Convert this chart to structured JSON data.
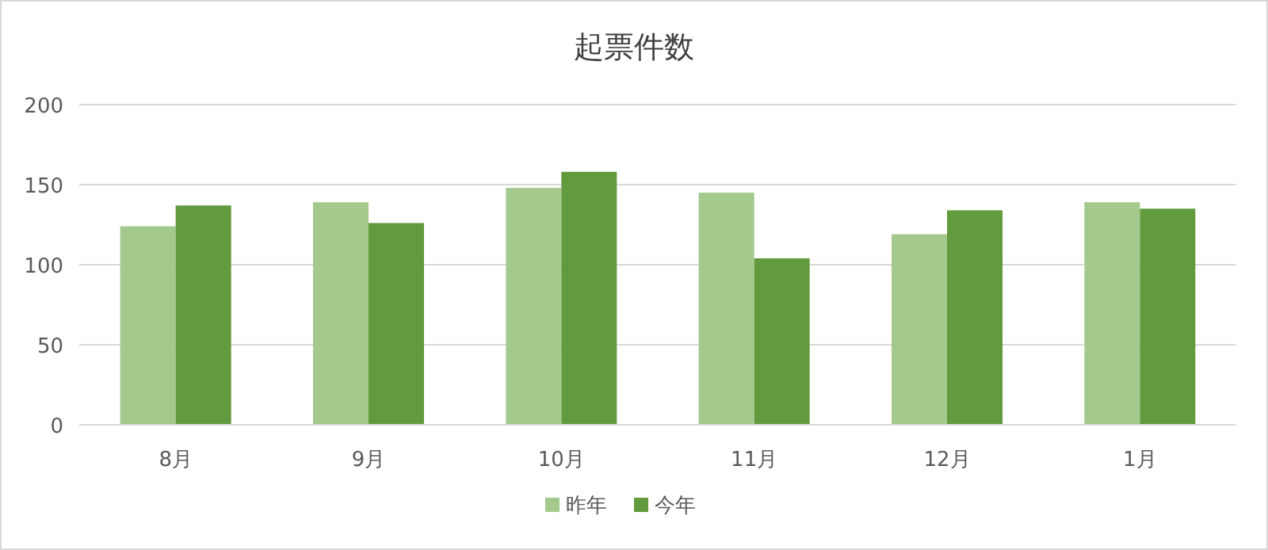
{
  "chart_data": {
    "type": "bar",
    "title": "起票件数",
    "categories": [
      "8月",
      "9月",
      "10月",
      "11月",
      "12月",
      "1月"
    ],
    "series": [
      {
        "name": "昨年",
        "color": "#a3c98c",
        "values": [
          124,
          139,
          148,
          145,
          119,
          139
        ]
      },
      {
        "name": "今年",
        "color": "#629a3e",
        "values": [
          137,
          126,
          158,
          104,
          134,
          135
        ]
      }
    ],
    "ylim": [
      0,
      200
    ],
    "yticks": [
      0,
      50,
      100,
      150,
      200
    ],
    "grid": "y",
    "legend": "bottom"
  }
}
